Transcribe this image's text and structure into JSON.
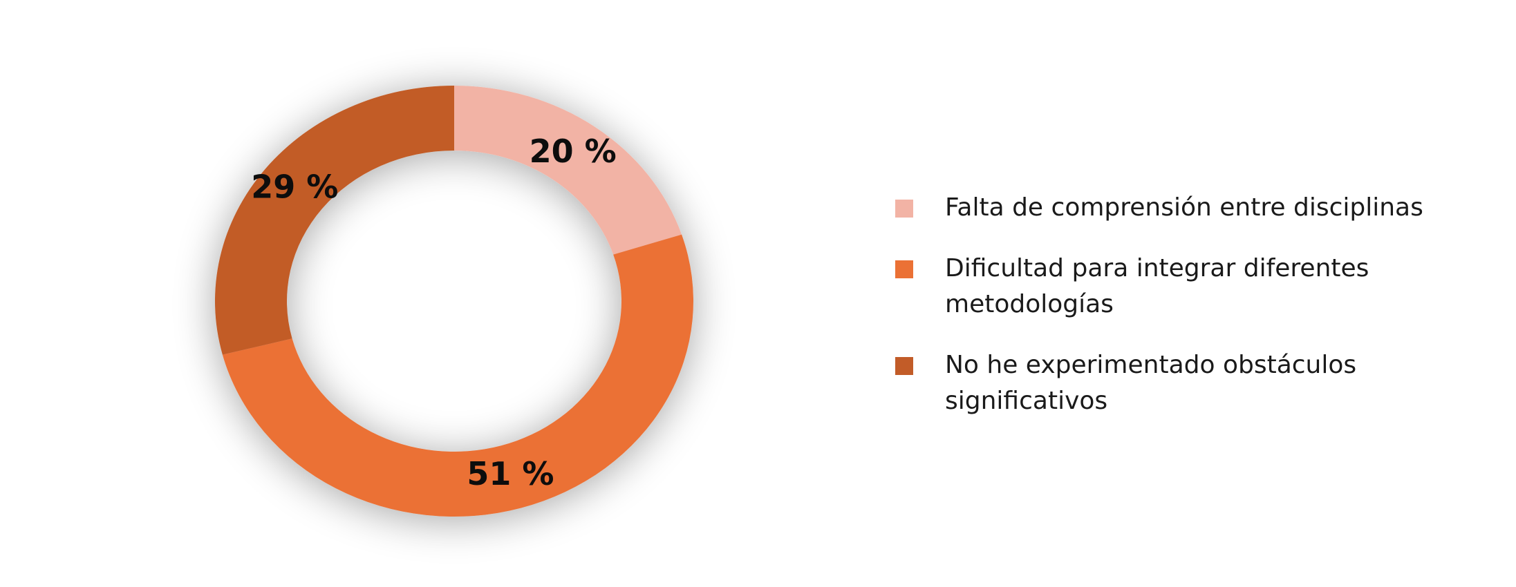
{
  "chart_data": {
    "type": "pie",
    "donut": true,
    "categories": [
      "Falta de comprensión entre disciplinas",
      "Dificultad para integrar diferentes metodologías",
      "No he experimentado obstáculos significativos"
    ],
    "values": [
      20,
      51,
      29
    ],
    "value_labels": [
      "20 %",
      "51 %",
      "29 %"
    ],
    "colors": [
      "#f2b3a5",
      "#eb7135",
      "#c25c28"
    ],
    "title": "",
    "legend_position": "right",
    "start_angle": "top, clockwise"
  },
  "legend": {
    "items": [
      {
        "label": "Falta de comprensión entre disciplinas",
        "color": "#f2b3a5"
      },
      {
        "label": "Dificultad para integrar diferentes metodologías",
        "color": "#eb7135"
      },
      {
        "label": "No he experimentado obstáculos significativos",
        "color": "#c25c28"
      }
    ]
  }
}
